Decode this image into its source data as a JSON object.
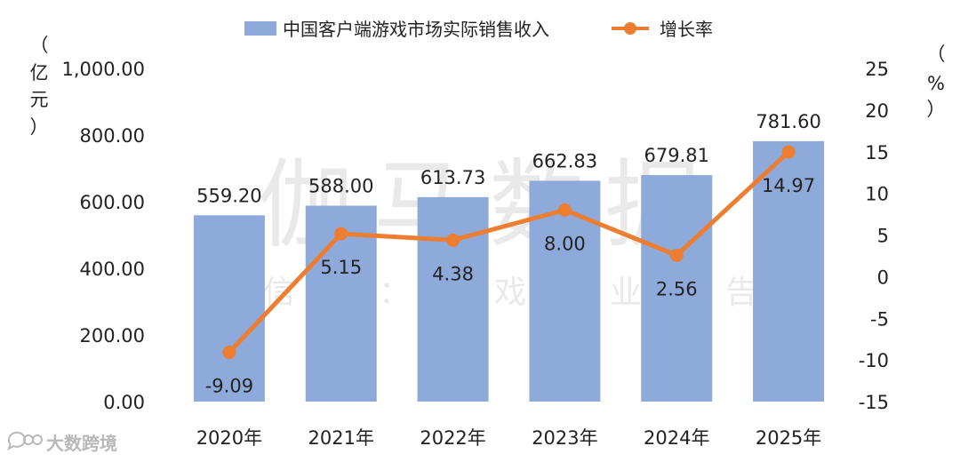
{
  "chart_data": {
    "type": "bar+line",
    "categories": [
      "2020年",
      "2021年",
      "2022年",
      "2023年",
      "2024年",
      "2025年"
    ],
    "series": [
      {
        "name": "中国客户端游戏市场实际销售收入",
        "kind": "bar",
        "axis": "left",
        "color": "#8eaadb",
        "values": [
          559.2,
          588.0,
          613.73,
          662.83,
          679.81,
          781.6
        ],
        "labels": [
          "559.20",
          "588.00",
          "613.73",
          "662.83",
          "679.81",
          "781.60"
        ]
      },
      {
        "name": "增长率",
        "kind": "line",
        "axis": "right",
        "color": "#ed7d31",
        "values": [
          -9.09,
          5.15,
          4.38,
          8.0,
          2.56,
          14.97
        ],
        "labels": [
          "-9.09",
          "5.15",
          "4.38",
          "8.00",
          "2.56",
          "14.97"
        ]
      }
    ],
    "y_left": {
      "label": [
        "（",
        "亿",
        "元",
        "）"
      ],
      "ylim": [
        0,
        1000
      ],
      "ticks": [
        0,
        200,
        400,
        600,
        800,
        1000
      ],
      "tick_labels": [
        "0.00",
        "200.00",
        "400.00",
        "600.00",
        "800.00",
        "1,000.00"
      ]
    },
    "y_right": {
      "label": [
        "（",
        "%",
        "）"
      ],
      "ylim": [
        -15,
        25
      ],
      "ticks": [
        -15,
        -10,
        -5,
        0,
        5,
        10,
        15,
        20,
        25
      ],
      "tick_labels": [
        "-15",
        "-10",
        "-5",
        "0",
        "5",
        "10",
        "15",
        "20",
        "25"
      ]
    },
    "legend_position": "top-center",
    "grid": false
  },
  "watermark": {
    "main": "伽马数据",
    "sub": "微信号：游戏产业报告"
  },
  "logo": {
    "text": "大数跨境",
    "icon": "chat-bubble-icon"
  }
}
